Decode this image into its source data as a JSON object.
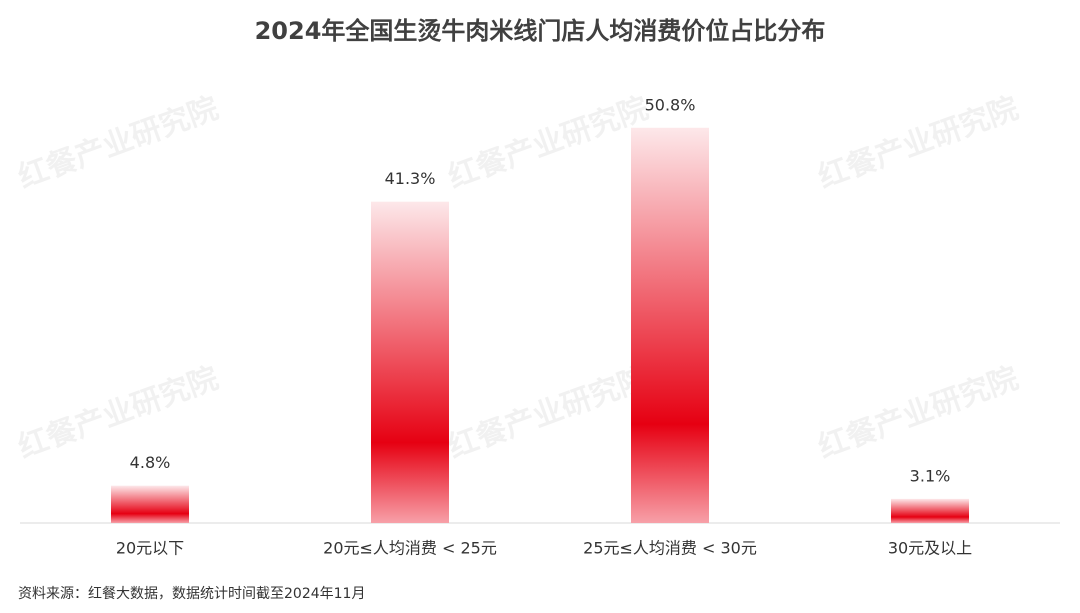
{
  "chart_data": {
    "type": "bar",
    "title": "2024年全国生烫牛肉米线门店人均消费价位占比分布",
    "categories": [
      "20元以下",
      "20元≤人均消费 < 25元",
      "25元≤人均消费 < 30元",
      "30元及以上"
    ],
    "values": [
      4.8,
      41.3,
      50.8,
      3.1
    ],
    "value_labels": [
      "4.8%",
      "41.3%",
      "50.8%",
      "3.1%"
    ],
    "color": "#e60012",
    "source": "资料来源：红餐大数据，数据统计时间截至2024年11月",
    "watermark": "红餐产业研究院"
  }
}
